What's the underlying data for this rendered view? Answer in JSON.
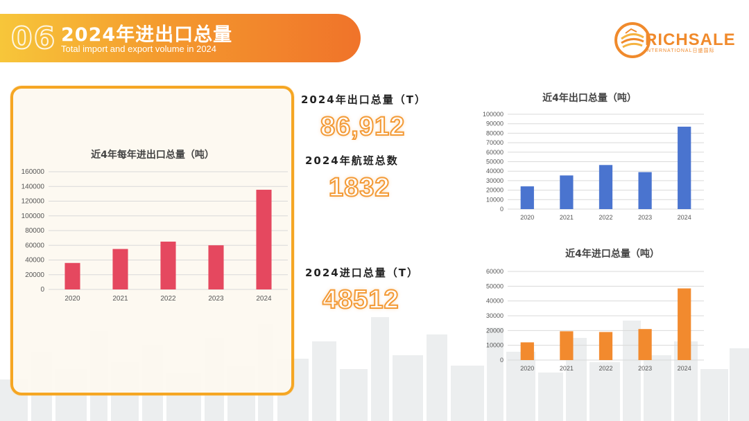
{
  "header": {
    "number": "06",
    "title": "2024年进出口总量",
    "subtitle": "Total import and export volume in 2024"
  },
  "logo": {
    "text": "RICHSALE",
    "subtext": "INTERNATIONAL",
    "subtext_cn": "日盛国际"
  },
  "stats": {
    "export_label": "2024年出口总量（T）",
    "export_value": "86,912",
    "flights_label": "2024年航班总数",
    "flights_value": "1832",
    "import_label": "2024进口总量（T）",
    "import_value": "48512"
  },
  "colors": {
    "banner_start": "#f7c63a",
    "banner_end": "#f0732a",
    "card_border": "#f5a623",
    "total_bar": "#e5485f",
    "export_bar": "#4a74cf",
    "import_bar": "#f28a2e",
    "stat_outline": "#f39a36"
  },
  "chart_data": [
    {
      "type": "bar",
      "title": "近4年每年进出口总量（吨）",
      "categories": [
        "2020",
        "2021",
        "2022",
        "2023",
        "2024"
      ],
      "values": [
        36000,
        55000,
        65000,
        60000,
        135500
      ],
      "ylim": [
        0,
        160000
      ],
      "yticks": [
        0,
        20000,
        40000,
        60000,
        80000,
        100000,
        120000,
        140000,
        160000
      ],
      "grid": true,
      "color": "#e5485f"
    },
    {
      "type": "bar",
      "title": "近4年出口总量（吨）",
      "categories": [
        "2020",
        "2021",
        "2022",
        "2023",
        "2024"
      ],
      "values": [
        24000,
        35500,
        46500,
        39000,
        86912
      ],
      "ylim": [
        0,
        100000
      ],
      "yticks": [
        0,
        10000,
        20000,
        30000,
        40000,
        50000,
        60000,
        70000,
        80000,
        90000,
        100000
      ],
      "grid": true,
      "color": "#4a74cf"
    },
    {
      "type": "bar",
      "title": "近4年进口总量（吨）",
      "categories": [
        "2020",
        "2021",
        "2022",
        "2023",
        "2024"
      ],
      "values": [
        12000,
        19500,
        19000,
        21000,
        48512
      ],
      "ylim": [
        0,
        60000
      ],
      "yticks": [
        0,
        10000,
        20000,
        30000,
        40000,
        50000,
        60000
      ],
      "grid": true,
      "color": "#f28a2e"
    }
  ]
}
